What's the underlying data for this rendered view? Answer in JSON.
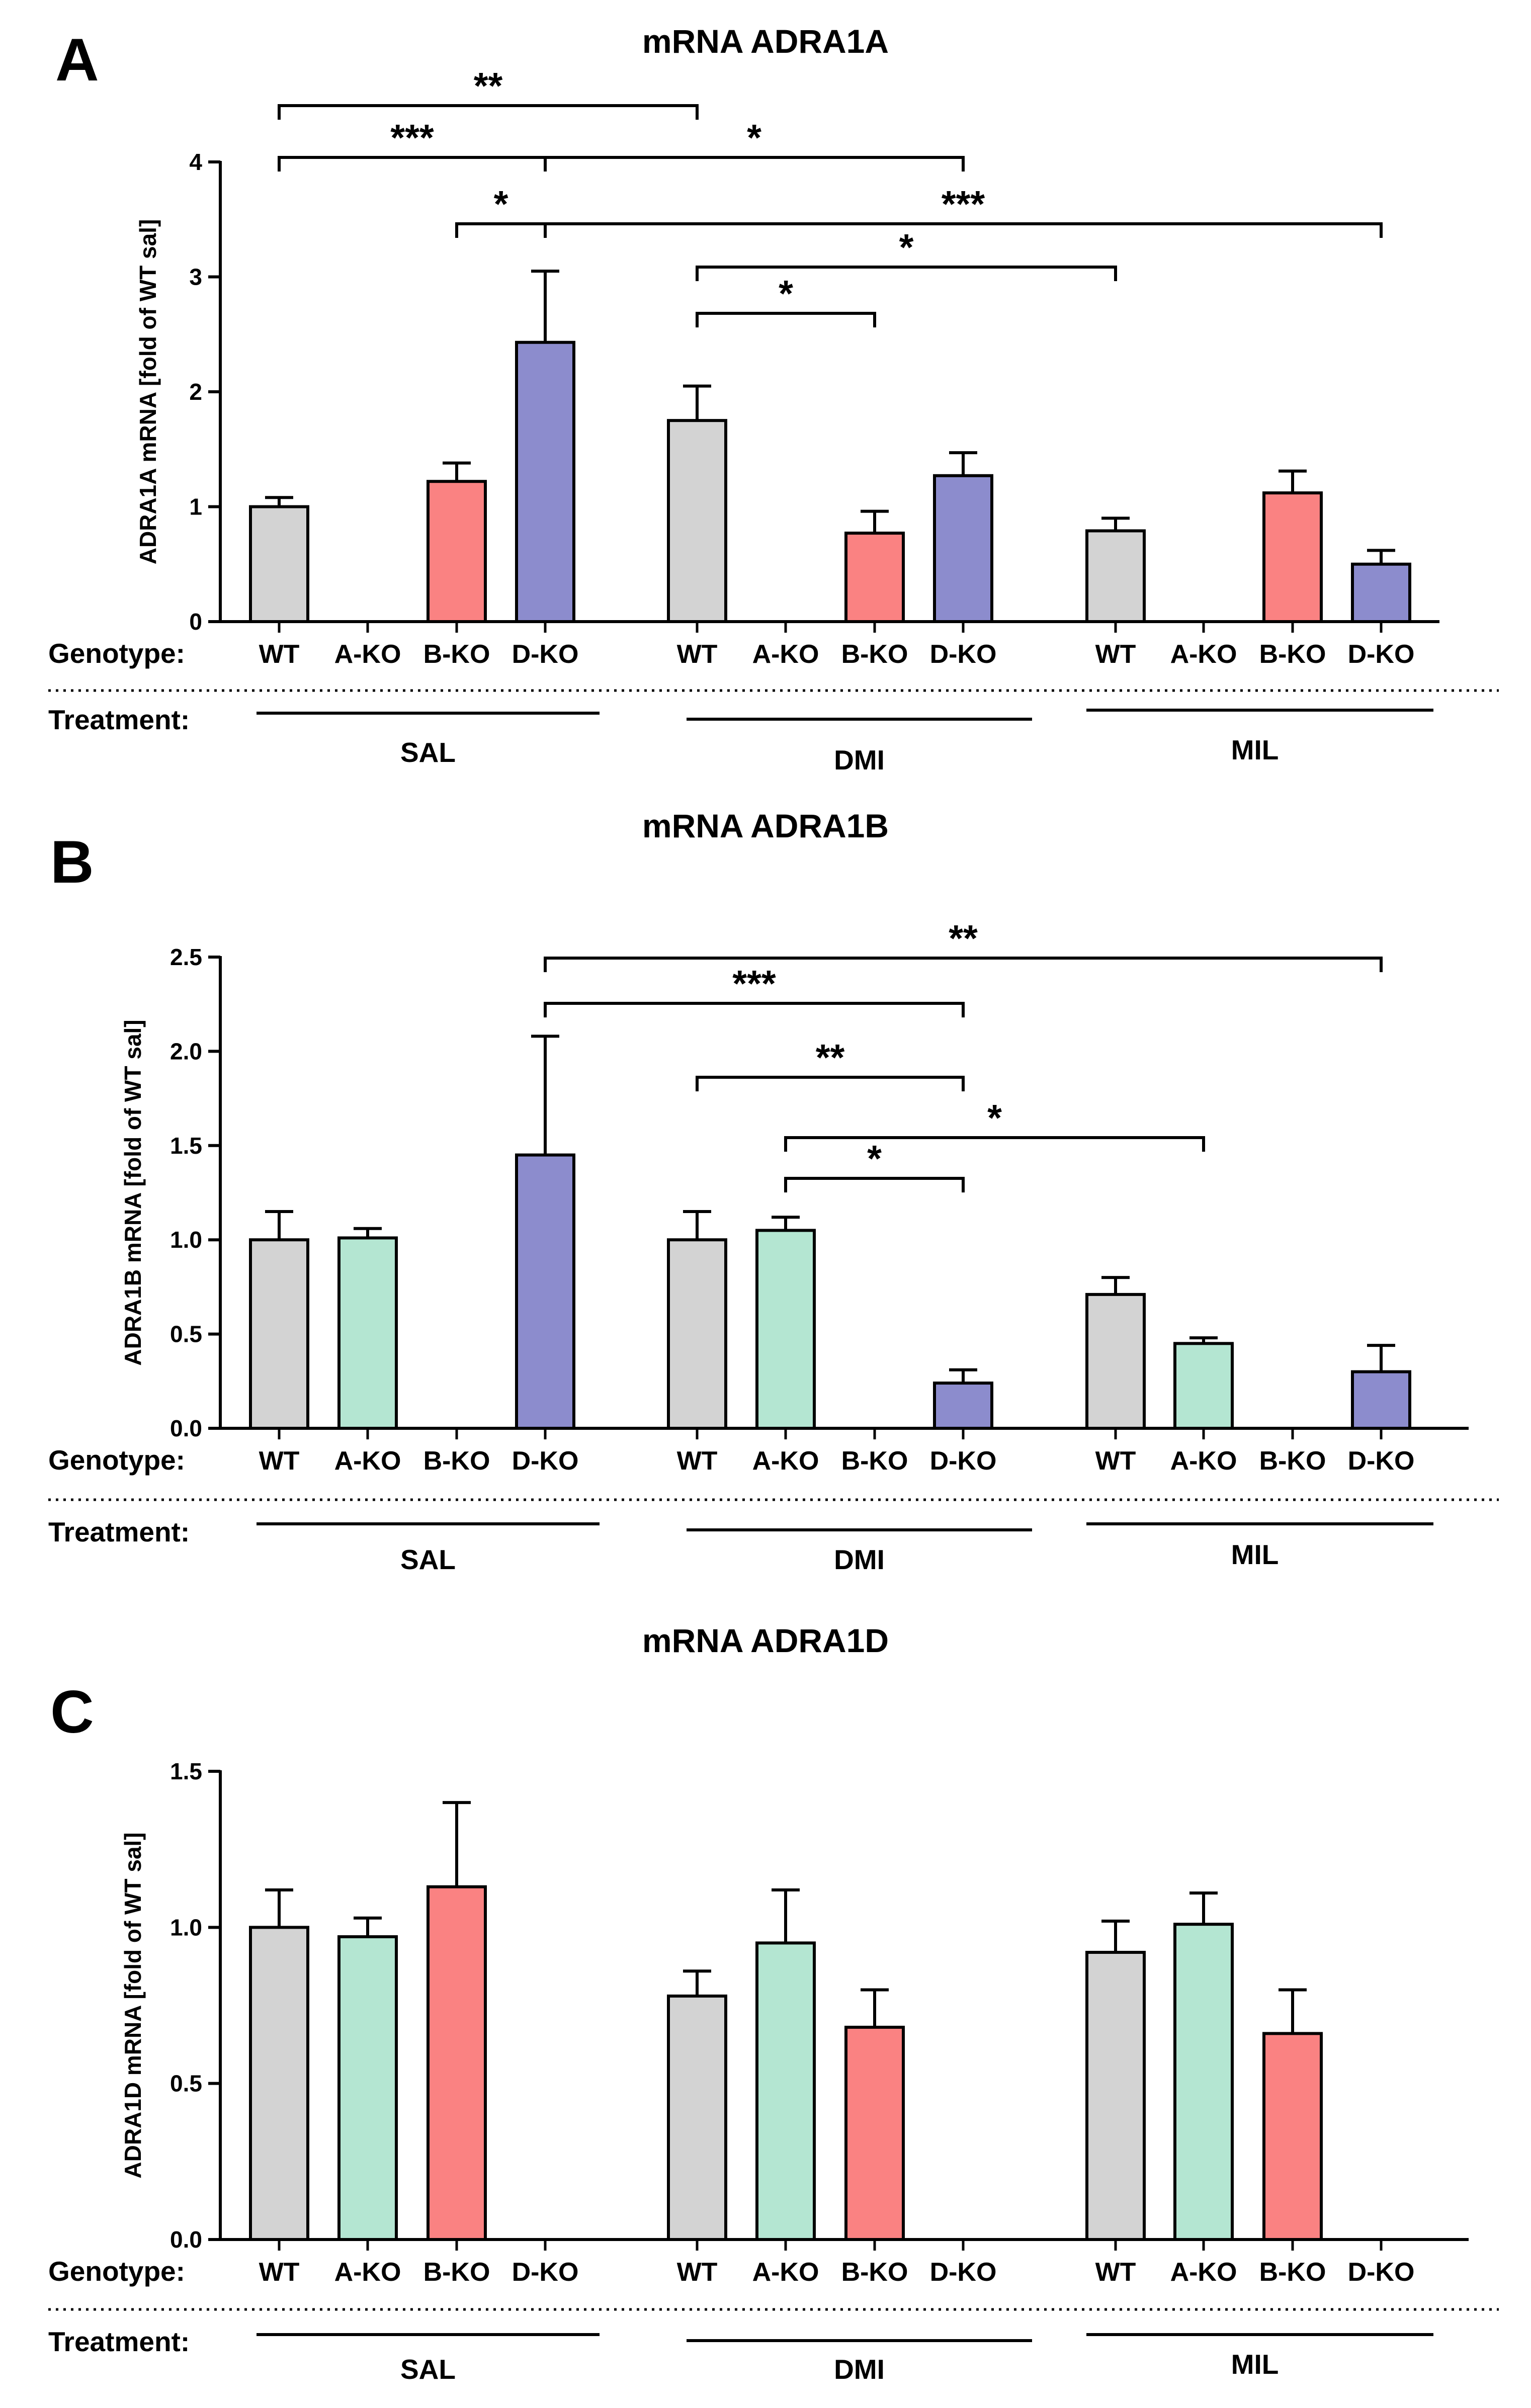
{
  "chart_data": [
    {
      "panel": "A",
      "type": "bar",
      "title": "mRNA ADRA1A",
      "ylabel": "ADRA1A mRNA  [fold of WT sal]",
      "ylim": [
        0,
        4
      ],
      "yticks": [
        0,
        1,
        2,
        3,
        4
      ],
      "ytick_labels": [
        "0",
        "1",
        "2",
        "3",
        "4"
      ],
      "genotype_label": "Genotype:",
      "treatment_label": "Treatment:",
      "genotypes": [
        "WT",
        "A-KO",
        "B-KO",
        "D-KO"
      ],
      "groups": [
        "SAL",
        "DMI",
        "MIL"
      ],
      "values": [
        [
          1.0,
          null,
          1.22,
          2.43
        ],
        [
          1.75,
          null,
          0.77,
          1.27
        ],
        [
          0.79,
          null,
          1.12,
          0.5
        ]
      ],
      "errors": [
        [
          0.08,
          null,
          0.16,
          0.62
        ],
        [
          0.3,
          null,
          0.19,
          0.2
        ],
        [
          0.11,
          null,
          0.19,
          0.12
        ]
      ],
      "significance": [
        {
          "from": [
            0,
            0
          ],
          "to": [
            1,
            0
          ],
          "label": "**"
        },
        {
          "from": [
            0,
            0
          ],
          "to": [
            0,
            3
          ],
          "label": "***"
        },
        {
          "from": [
            0,
            3
          ],
          "to": [
            1,
            3
          ],
          "label": "*"
        },
        {
          "from": [
            0,
            2
          ],
          "to": [
            0,
            3
          ],
          "label": "*"
        },
        {
          "from": [
            0,
            3
          ],
          "to": [
            2,
            3
          ],
          "label": "***"
        },
        {
          "from": [
            1,
            0
          ],
          "to": [
            2,
            0
          ],
          "label": "*"
        },
        {
          "from": [
            1,
            0
          ],
          "to": [
            1,
            2
          ],
          "label": "*"
        }
      ]
    },
    {
      "panel": "B",
      "type": "bar",
      "title": "mRNA ADRA1B",
      "ylabel": "ADRA1B mRNA  [fold of WT sal]",
      "ylim": [
        0,
        2.5
      ],
      "yticks": [
        0,
        0.5,
        1.0,
        1.5,
        2.0,
        2.5
      ],
      "ytick_labels": [
        "0.0",
        "0.5",
        "1.0",
        "1.5",
        "2.0",
        "2.5"
      ],
      "genotype_label": "Genotype:",
      "treatment_label": "Treatment:",
      "genotypes": [
        "WT",
        "A-KO",
        "B-KO",
        "D-KO"
      ],
      "groups": [
        "SAL",
        "DMI",
        "MIL"
      ],
      "values": [
        [
          1.0,
          1.01,
          null,
          1.45
        ],
        [
          1.0,
          1.05,
          null,
          0.24
        ],
        [
          0.71,
          0.45,
          null,
          0.3
        ]
      ],
      "errors": [
        [
          0.15,
          0.05,
          null,
          0.63
        ],
        [
          0.15,
          0.07,
          null,
          0.07
        ],
        [
          0.09,
          0.03,
          null,
          0.14
        ]
      ],
      "significance": [
        {
          "from": [
            0,
            3
          ],
          "to": [
            2,
            3
          ],
          "label": "**"
        },
        {
          "from": [
            0,
            3
          ],
          "to": [
            1,
            3
          ],
          "label": "***"
        },
        {
          "from": [
            1,
            0
          ],
          "to": [
            1,
            3
          ],
          "label": "**"
        },
        {
          "from": [
            1,
            1
          ],
          "to": [
            2,
            1
          ],
          "label": "*"
        },
        {
          "from": [
            1,
            1
          ],
          "to": [
            1,
            3
          ],
          "label": "*"
        }
      ]
    },
    {
      "panel": "C",
      "type": "bar",
      "title": "mRNA ADRA1D",
      "ylabel": "ADRA1D mRNA  [fold of WT sal]",
      "ylim": [
        0,
        1.5
      ],
      "yticks": [
        0,
        0.5,
        1.0,
        1.5
      ],
      "ytick_labels": [
        "0.0",
        "0.5",
        "1.0",
        "1.5"
      ],
      "genotype_label": "Genotype:",
      "treatment_label": "Treatment:",
      "genotypes": [
        "WT",
        "A-KO",
        "B-KO",
        "D-KO"
      ],
      "groups": [
        "SAL",
        "DMI",
        "MIL"
      ],
      "values": [
        [
          1.0,
          0.97,
          1.13,
          null
        ],
        [
          0.78,
          0.95,
          0.68,
          null
        ],
        [
          0.92,
          1.01,
          0.66,
          null
        ]
      ],
      "errors": [
        [
          0.12,
          0.06,
          0.27,
          null
        ],
        [
          0.08,
          0.17,
          0.12,
          null
        ],
        [
          0.1,
          0.1,
          0.14,
          null
        ]
      ],
      "significance": []
    }
  ],
  "colors": {
    "WT": "#d3d3d3",
    "A-KO": "#b4e6d2",
    "B-KO": "#fa8282",
    "D-KO": "#8c8ccd",
    "line": "#000000"
  }
}
